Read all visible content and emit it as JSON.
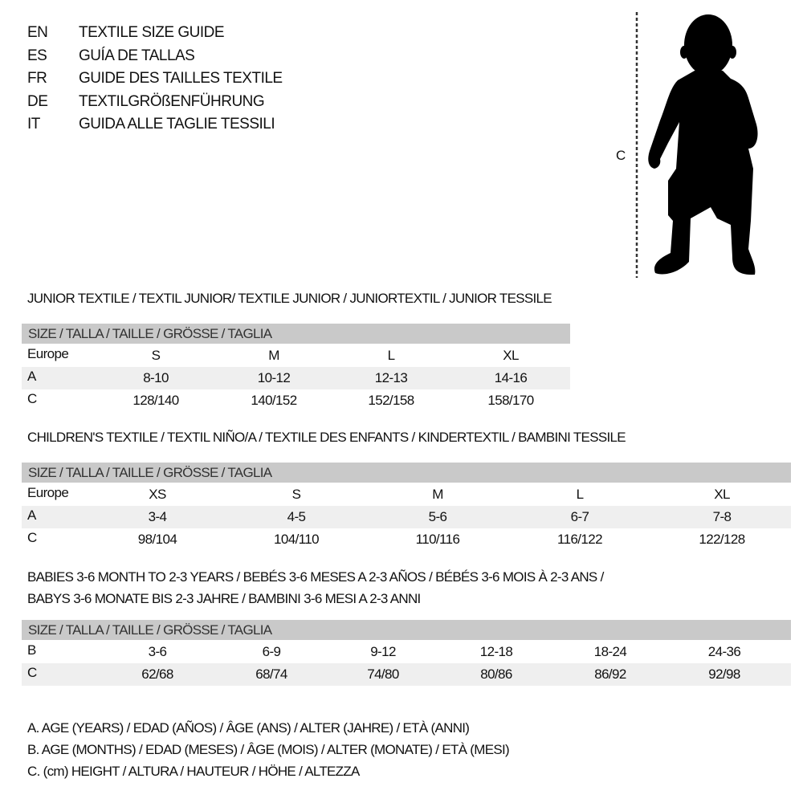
{
  "languages": [
    {
      "code": "EN",
      "title": "TEXTILE SIZE GUIDE"
    },
    {
      "code": "ES",
      "title": "GUÍA DE TALLAS"
    },
    {
      "code": "FR",
      "title": "GUIDE DES TAILLES TEXTILE"
    },
    {
      "code": "DE",
      "title": "TEXTILGRÖßENFÜHRUNG"
    },
    {
      "code": "IT",
      "title": "GUIDA ALLE TAGLIE TESSILI"
    }
  ],
  "figure": {
    "measure_label": "C",
    "icon": "child-silhouette-icon"
  },
  "size_header": "SIZE / TALLA / TAILLE / GRÖSSE / TAGLIA",
  "junior": {
    "title": "JUNIOR TEXTILE / TEXTIL JUNIOR/ TEXTILE JUNIOR / JUNIORTEXTIL / JUNIOR TESSILE",
    "rows": [
      {
        "label": "Europe",
        "values": [
          "S",
          "M",
          "L",
          "XL"
        ]
      },
      {
        "label": "A",
        "values": [
          "8-10",
          "10-12",
          "12-13",
          "14-16"
        ]
      },
      {
        "label": "C",
        "values": [
          "128/140",
          "140/152",
          "152/158",
          "158/170"
        ]
      }
    ]
  },
  "children": {
    "title": "CHILDREN'S TEXTILE / TEXTIL NIÑO/A / TEXTILE DES ENFANTS / KINDERTEXTIL / BAMBINI TESSILE",
    "rows": [
      {
        "label": "Europe",
        "values": [
          "XS",
          "S",
          "M",
          "L",
          "XL"
        ]
      },
      {
        "label": "A",
        "values": [
          "3-4",
          "4-5",
          "5-6",
          "6-7",
          "7-8"
        ]
      },
      {
        "label": "C",
        "values": [
          "98/104",
          "104/110",
          "110/116",
          "116/122",
          "122/128"
        ]
      }
    ]
  },
  "babies": {
    "title_line1": "BABIES 3-6 MONTH TO 2-3 YEARS / BEBÉS 3-6 MESES A 2-3 AÑOS / BÉBÉS 3-6 MOIS À 2-3 ANS /",
    "title_line2": "BABYS 3-6 MONATE BIS 2-3 JAHRE / BAMBINI 3-6 MESI A 2-3 ANNI",
    "rows": [
      {
        "label": "B",
        "values": [
          "3-6",
          "6-9",
          "9-12",
          "12-18",
          "18-24",
          "24-36"
        ]
      },
      {
        "label": "C",
        "values": [
          "62/68",
          "68/74",
          "74/80",
          "80/86",
          "86/92",
          "92/98"
        ]
      }
    ]
  },
  "legend": [
    "A. AGE (YEARS) / EDAD (AÑOS) / ÂGE (ANS) / ALTER (JAHRE) / ETÀ (ANNI)",
    "B. AGE (MONTHS) / EDAD (MESES) / ÂGE (MOIS) / ALTER (MONATE) / ETÀ (MESI)",
    "C. (cm) HEIGHT / ALTURA / HAUTEUR / HÖHE / ALTEZZA"
  ],
  "colors": {
    "header_bar": "#c9c9c9",
    "row_shade": "#efefef",
    "text": "#111111"
  }
}
